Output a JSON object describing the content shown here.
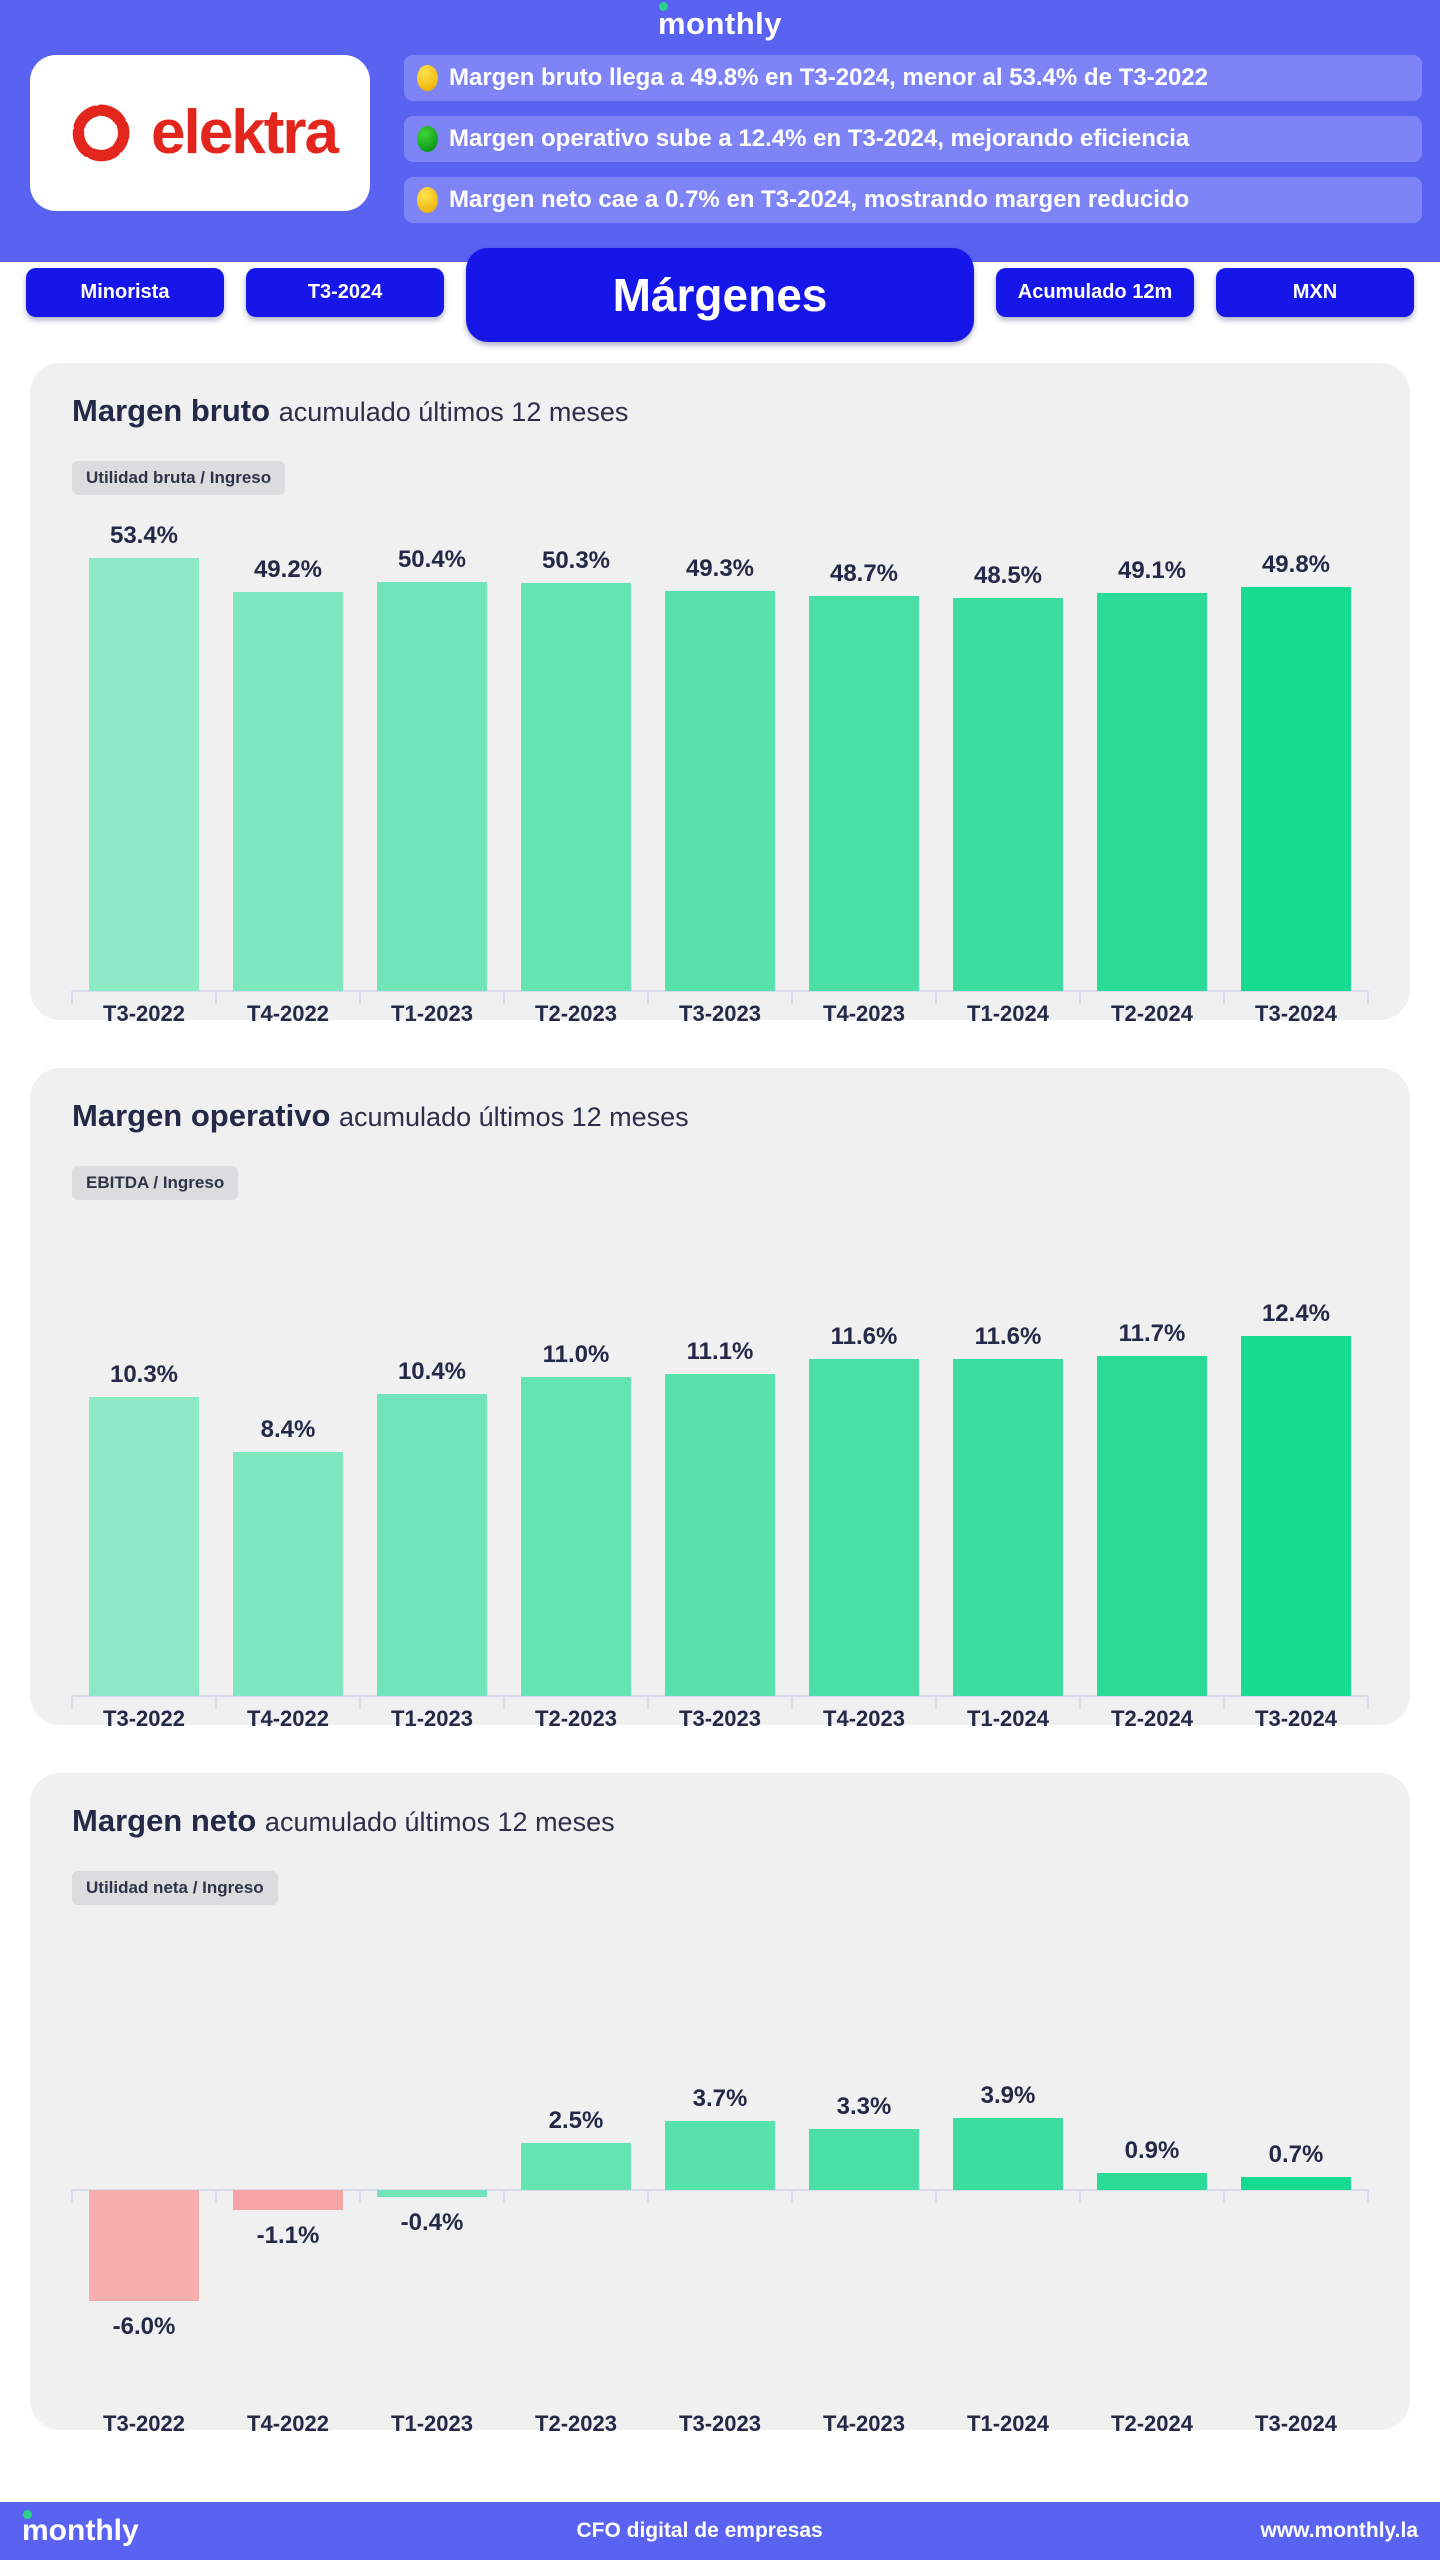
{
  "header": {
    "brand": "monthly",
    "company_logo_text": "elektra",
    "bullets": [
      {
        "dot": "yellow",
        "text": "Margen bruto llega a 49.8% en T3-2024, menor al 53.4% de T3-2022"
      },
      {
        "dot": "green",
        "text": "Margen operativo sube a 12.4% en T3-2024, mejorando eficiencia"
      },
      {
        "dot": "yellow",
        "text": "Margen neto cae a 0.7% en T3-2024, mostrando margen reducido"
      }
    ]
  },
  "filters": {
    "pills": [
      {
        "label": "Minorista",
        "size": "small"
      },
      {
        "label": "T3-2024",
        "size": "small"
      },
      {
        "label": "Márgenes",
        "size": "large"
      },
      {
        "label": "Acumulado 12m",
        "size": "small"
      },
      {
        "label": "MXN",
        "size": "small"
      }
    ]
  },
  "colors": {
    "header_blue": "#5A62F2",
    "pill_blue": "#1616E9",
    "card_gray": "#F0F0F1",
    "text_navy": "#232946",
    "elektra_red": "#E3261D",
    "brand_dot_green": "#2BD089",
    "positive_green_max": "#15DA90",
    "positive_green_min": "#8BE9C5",
    "negative_pink": "#F6ACAC"
  },
  "chart_data": [
    {
      "type": "bar",
      "title": "Margen bruto",
      "subtitle": "acumulado últimos 12 meses",
      "tag": "Utilidad bruta / Ingreso",
      "unit": "%",
      "categories": [
        "T3-2022",
        "T4-2022",
        "T1-2023",
        "T2-2023",
        "T3-2023",
        "T4-2023",
        "T1-2024",
        "T2-2024",
        "T3-2024"
      ],
      "values": [
        53.4,
        49.2,
        50.4,
        50.3,
        49.3,
        48.7,
        48.5,
        49.1,
        49.8
      ],
      "ylim": [
        0,
        58
      ],
      "grid": false,
      "legend": false,
      "bar_colors": [
        "#8BE9C5",
        "#7EE7BF",
        "#71E5B9",
        "#64E3B3",
        "#57E1AD",
        "#4ADFA7",
        "#3DDDA1",
        "#2ADB98",
        "#15DA90"
      ]
    },
    {
      "type": "bar",
      "title": "Margen operativo",
      "subtitle": "acumulado últimos 12 meses",
      "tag": "EBITDA / Ingreso",
      "unit": "%",
      "categories": [
        "T3-2022",
        "T4-2022",
        "T1-2023",
        "T2-2023",
        "T3-2023",
        "T4-2023",
        "T1-2024",
        "T2-2024",
        "T3-2024"
      ],
      "values": [
        10.3,
        8.4,
        10.4,
        11.0,
        11.1,
        11.6,
        11.6,
        11.7,
        12.4
      ],
      "ylim": [
        0,
        16.2
      ],
      "grid": false,
      "legend": false,
      "bar_colors": [
        "#8BE9C5",
        "#7EE7BF",
        "#71E5B9",
        "#64E3B3",
        "#57E1AD",
        "#4ADFA7",
        "#3DDDA1",
        "#2ADB98",
        "#15DA90"
      ]
    },
    {
      "type": "bar",
      "title": "Margen neto",
      "subtitle": "acumulado últimos 12 meses",
      "tag": "Utilidad neta / Ingreso",
      "unit": "%",
      "categories": [
        "T3-2022",
        "T4-2022",
        "T1-2023",
        "T2-2023",
        "T3-2023",
        "T4-2023",
        "T1-2024",
        "T2-2024",
        "T3-2024"
      ],
      "values": [
        -6.0,
        -1.1,
        -0.4,
        2.5,
        3.7,
        3.3,
        3.9,
        0.9,
        0.7
      ],
      "ylim": [
        -11.4,
        14
      ],
      "grid": false,
      "legend": false,
      "bar_colors": [
        "#F6AEAE",
        "#F5A5A5",
        "#71E5B9",
        "#64E3B3",
        "#57E1AD",
        "#4ADFA7",
        "#3DDDA1",
        "#2ADB98",
        "#15DA90"
      ]
    }
  ],
  "footer": {
    "brand": "monthly",
    "tagline": "CFO digital de empresas",
    "url": "www.monthly.la"
  }
}
